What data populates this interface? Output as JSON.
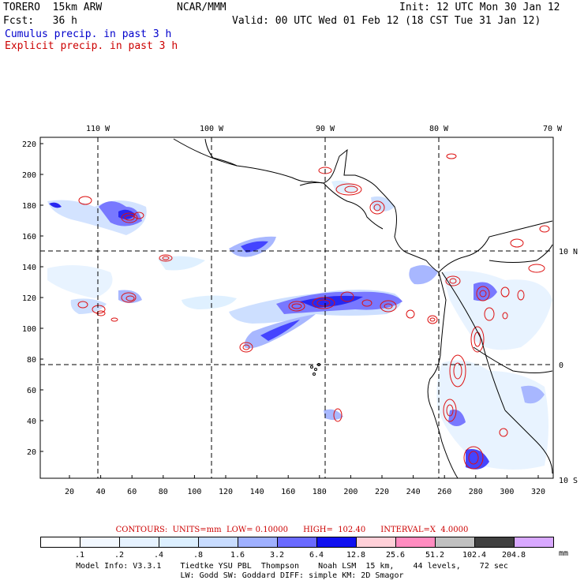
{
  "header": {
    "model": "TORERO  15km ARW",
    "org": "NCAR/MMM",
    "init": "Init: 12 UTC Mon 30 Jan 12",
    "fcst": "Fcst:   36 h",
    "valid": "Valid: 00 UTC Wed 01 Feb 12 (18 CST Tue 31 Jan 12)",
    "field1": "Cumulus precip. in past 3 h",
    "field2": "Explicit precip. in past 3 h",
    "field1_color": "#0000cc",
    "field2_color": "#cc0000"
  },
  "map": {
    "lon_labels": [
      "110 W",
      "100 W",
      "90 W",
      "80 W",
      "70 W"
    ],
    "lat_labels": [
      "10 N",
      "0",
      "10 S"
    ],
    "y_ticks": [
      "220",
      "200",
      "180",
      "160",
      "140",
      "120",
      "100",
      "80",
      "60",
      "40",
      "20"
    ],
    "x_ticks": [
      "20",
      "40",
      "60",
      "80",
      "100",
      "120",
      "140",
      "160",
      "180",
      "200",
      "220",
      "240",
      "260",
      "280",
      "300",
      "320"
    ]
  },
  "contours_line": "CONTOURS:  UNITS=mm  LOW= 0.10000      HIGH=  102.40      INTERVAL=X  4.0000",
  "colorbar": {
    "labels": [
      ".1",
      ".2",
      ".4",
      ".8",
      "1.6",
      "3.2",
      "6.4",
      "12.8",
      "25.6",
      "51.2",
      "102.4",
      "204.8"
    ],
    "unit": "mm",
    "colors": [
      "#ffffff",
      "#f2f8ff",
      "#e6f2ff",
      "#dcefff",
      "#c8dcff",
      "#9fb0ff",
      "#6a6aff",
      "#1010f0",
      "#ffd0d8",
      "#ff8cc0",
      "#c0c0c0",
      "#404040",
      "#d8a8ff"
    ]
  },
  "info": {
    "line1": "Model Info: V3.3.1    Tiedtke YSU PBL  Thompson    Noah LSM  15 km,    44 levels,    72 sec",
    "line2": "LW: Godd SW: Goddard DIFF: simple KM: 2D Smagor"
  }
}
